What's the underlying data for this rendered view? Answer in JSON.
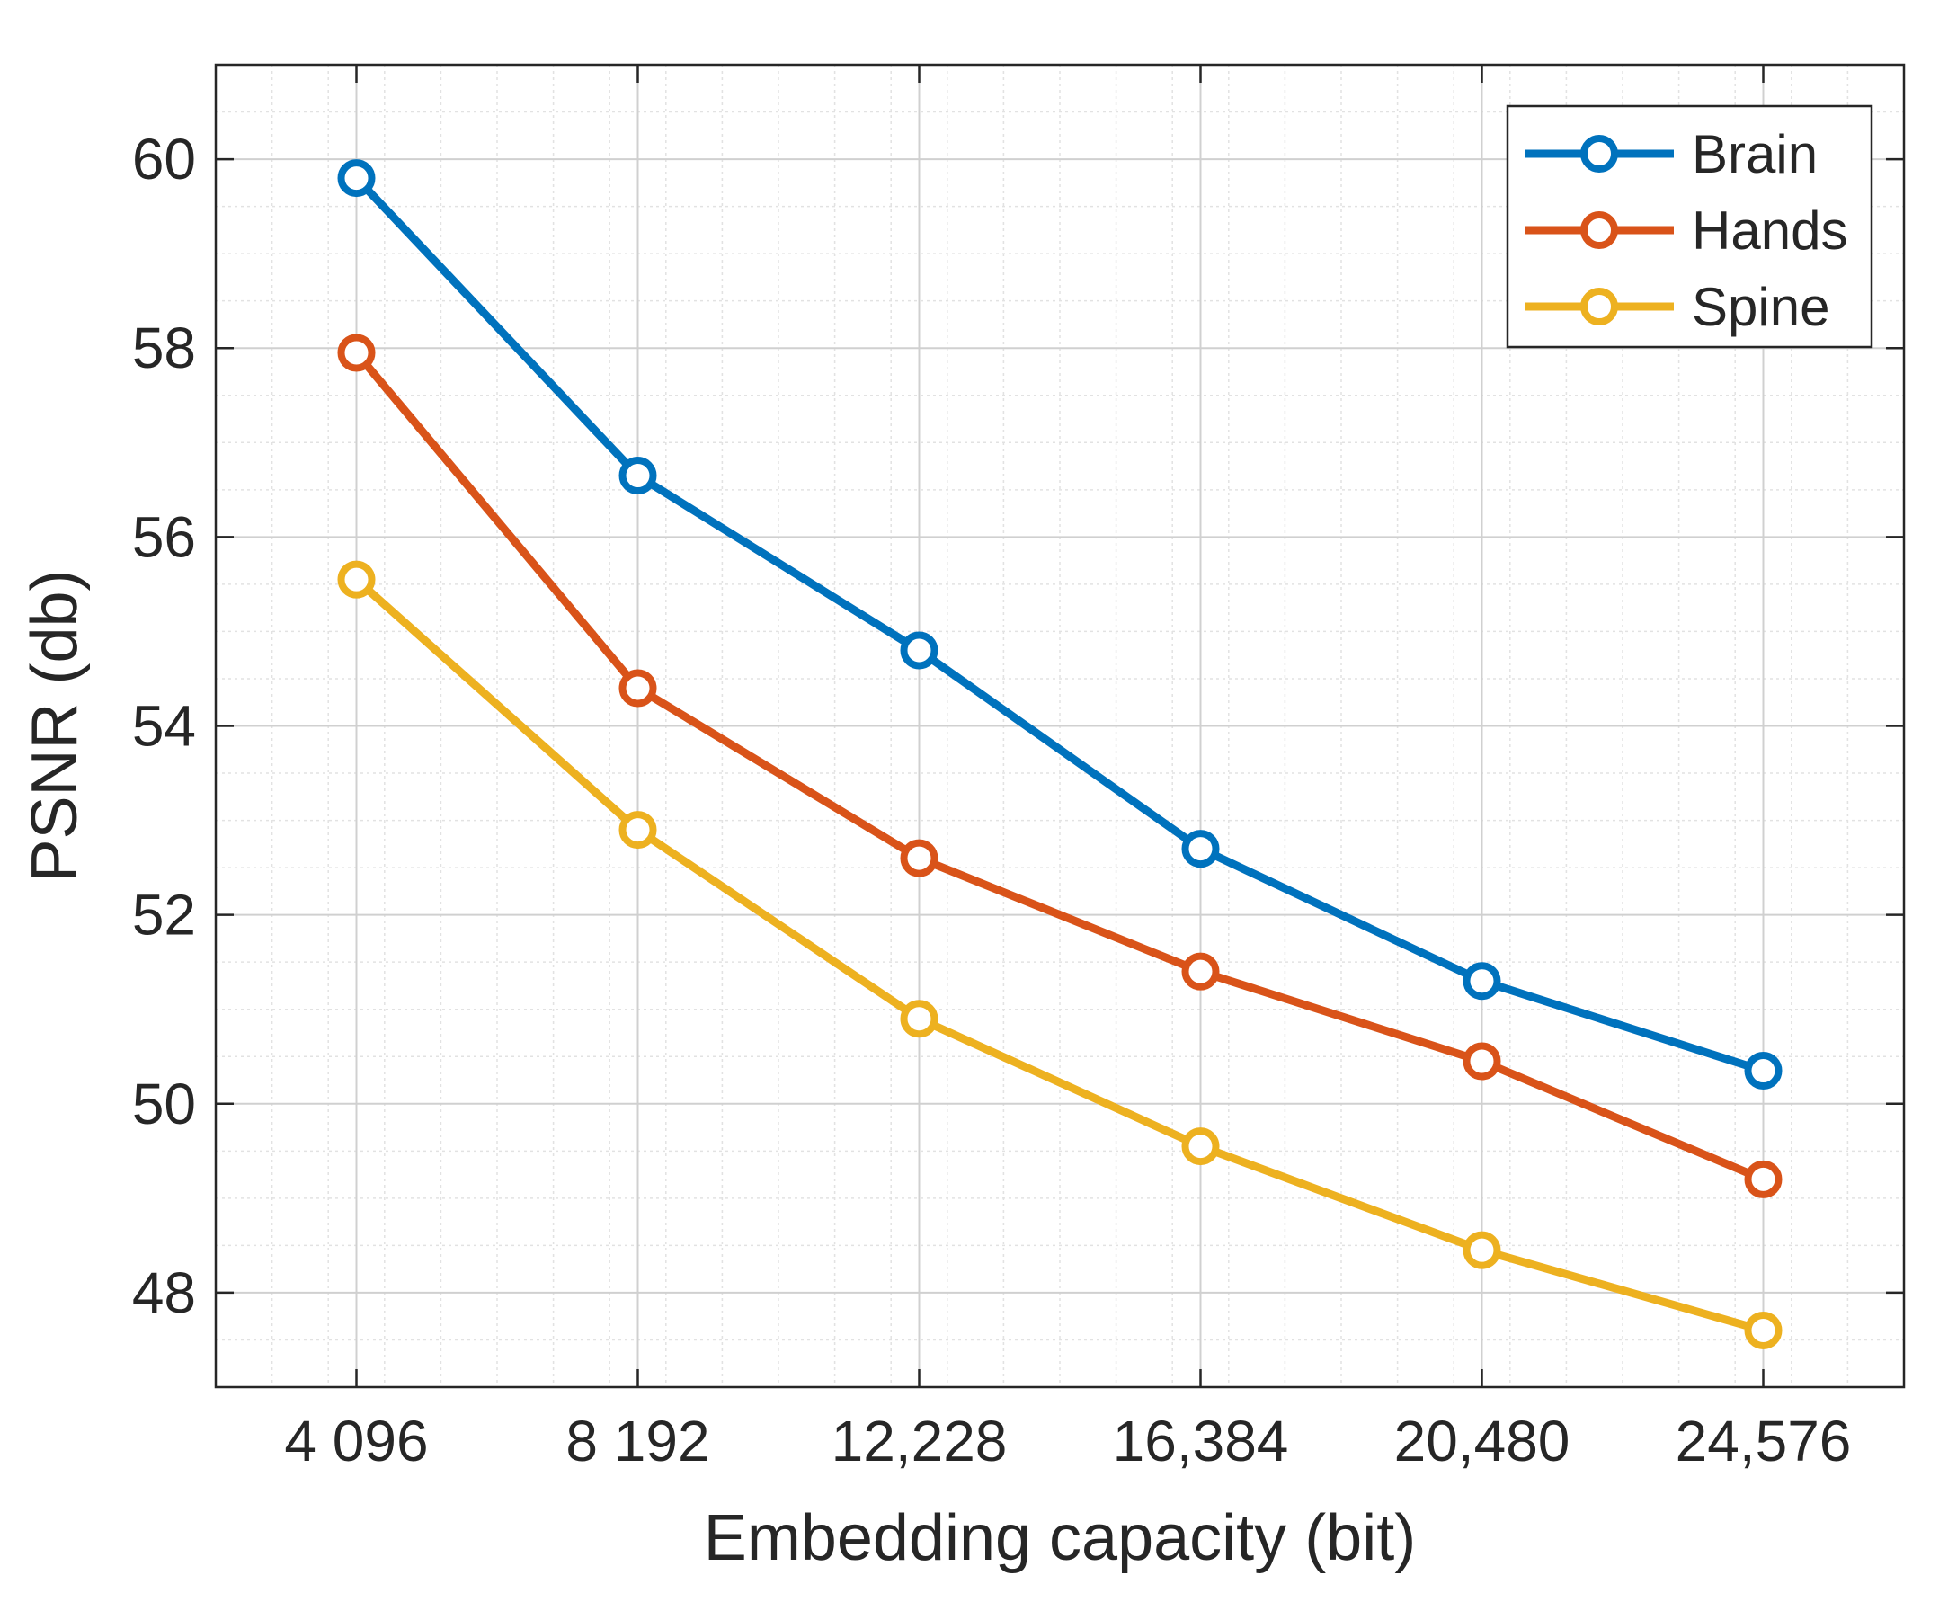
{
  "chart_data": {
    "type": "line",
    "title": "",
    "xlabel": "Embedding capacity (bit)",
    "ylabel": "PSNR (db)",
    "categories": [
      "4 096",
      "8 192",
      "12,228",
      "16,384",
      "20,480",
      "24,576"
    ],
    "xlim": [
      0.5,
      6.5
    ],
    "ylim": [
      47,
      61
    ],
    "yticks": [
      48,
      50,
      52,
      54,
      56,
      58,
      60
    ],
    "grid": true,
    "minor_grid": true,
    "legend_position": "top-right",
    "series": [
      {
        "name": "Brain",
        "color": "#0072BD",
        "values": [
          59.8,
          56.65,
          54.8,
          52.7,
          51.3,
          50.35
        ]
      },
      {
        "name": "Hands",
        "color": "#D95319",
        "values": [
          57.95,
          54.4,
          52.6,
          51.4,
          50.45,
          49.2
        ]
      },
      {
        "name": "Spine",
        "color": "#EDB120",
        "values": [
          55.55,
          52.9,
          50.9,
          49.55,
          48.45,
          47.6
        ]
      }
    ]
  }
}
